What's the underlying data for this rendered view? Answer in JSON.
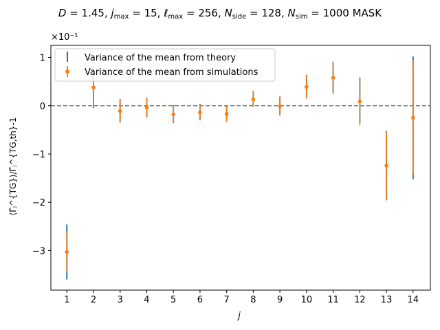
{
  "chart_data": {
    "type": "scatter",
    "title": "D = 1.45,  j_max = 15,  ℓ_max = 256,  N_side = 128,  N_sim = 1000 MASK",
    "title_parts": {
      "D": "1.45",
      "j_max": "15",
      "ell_max": "256",
      "N_side": "128",
      "N_sim": "1000",
      "suffix": "MASK"
    },
    "xlabel": "j",
    "ylabel": "⟨Γ̂ⱼ^{TG}⟩/Γ̂ⱼ^{TG,th}-1",
    "y_scale_label": "×10⁻¹",
    "x_ticks": [
      "1",
      "2",
      "3",
      "4",
      "5",
      "6",
      "7",
      "8",
      "9",
      "10",
      "11",
      "12",
      "13",
      "14"
    ],
    "y_ticks": [
      "−3",
      "−2",
      "−1",
      "0",
      "1"
    ],
    "xlim": [
      0.4,
      14.65
    ],
    "ylim": [
      -3.82,
      1.25
    ],
    "zero_line": {
      "y": 0,
      "style": "dashed",
      "color": "#808080"
    },
    "legend_position": "upper-left",
    "grid": false,
    "series": [
      {
        "name": "Variance of the mean from theory",
        "kind": "errorbar-only",
        "color": "#1f77b4",
        "x": [
          1,
          2,
          3,
          4,
          5,
          6,
          7,
          8,
          9,
          10,
          11,
          12,
          13,
          14
        ],
        "lower": [
          -3.6,
          -0.05,
          -0.35,
          -0.24,
          -0.36,
          -0.3,
          -0.33,
          -0.02,
          -0.2,
          0.15,
          0.25,
          -0.38,
          -1.96,
          -1.52
        ],
        "upper": [
          -2.46,
          0.82,
          0.13,
          0.16,
          0.01,
          0.04,
          0.0,
          0.31,
          0.19,
          0.64,
          0.91,
          0.58,
          -0.52,
          1.02
        ]
      },
      {
        "name": "Variance of the mean from simulations",
        "kind": "points-with-errorbars",
        "color": "#ff7f0e",
        "x": [
          1,
          2,
          3,
          4,
          5,
          6,
          7,
          8,
          9,
          10,
          11,
          12,
          13,
          14
        ],
        "y": [
          -3.03,
          0.38,
          -0.11,
          -0.04,
          -0.18,
          -0.14,
          -0.17,
          0.13,
          -0.01,
          0.39,
          0.58,
          0.09,
          -1.24,
          -0.25
        ],
        "lower": [
          -3.45,
          -0.02,
          -0.35,
          -0.24,
          -0.35,
          -0.3,
          -0.33,
          -0.02,
          -0.2,
          0.15,
          0.25,
          -0.4,
          -1.95,
          -1.43
        ],
        "upper": [
          -2.61,
          0.78,
          0.14,
          0.17,
          0.0,
          0.03,
          -0.01,
          0.31,
          0.19,
          0.63,
          0.91,
          0.59,
          -0.54,
          0.95
        ]
      }
    ]
  }
}
